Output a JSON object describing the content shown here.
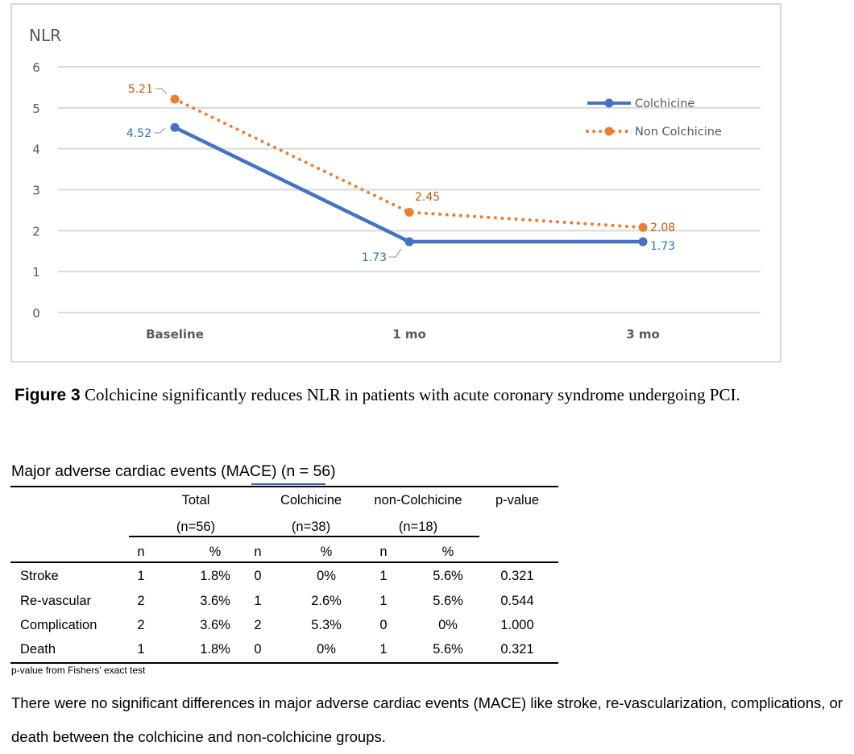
{
  "chart_data": {
    "type": "line",
    "title": "NLR",
    "xlabel": "",
    "ylabel": "NLR",
    "categories": [
      "Baseline",
      "1 mo",
      "3 mo"
    ],
    "ylim": [
      0,
      6
    ],
    "yticks": [
      0,
      1,
      2,
      3,
      4,
      5,
      6
    ],
    "grid": true,
    "legend_position": "top-right",
    "series": [
      {
        "name": "Colchicine",
        "values": [
          4.52,
          1.73,
          1.73
        ],
        "labels": [
          "4.52",
          "1.73",
          "1.73"
        ],
        "color": "#4472c4",
        "style": "solid"
      },
      {
        "name": "Non Colchicine",
        "values": [
          5.21,
          2.45,
          2.08
        ],
        "labels": [
          "5.21",
          "2.45",
          "2.08"
        ],
        "color": "#ed7d31",
        "style": "dotted"
      }
    ]
  },
  "colors": {
    "colchicine_label": "#2e75b6",
    "non_colchicine_label": "#c55a11",
    "axis_text": "#595959",
    "grid": "#d9d9d9"
  },
  "caption": {
    "prefix": "Figure 3",
    "text": " Colchicine significantly reduces NLR in patients with acute coronary syndrome undergoing PCI."
  },
  "table": {
    "title_before": "Major adverse cardiac events (",
    "title_mace": "MACE)",
    "title_after": "  (n = 56)",
    "groups": [
      {
        "name": "Total",
        "n": "(n=56)"
      },
      {
        "name": "Colchicine",
        "n": "(n=38)"
      },
      {
        "name": "non-Colchicine",
        "n": "(n=18)"
      }
    ],
    "pvalue_header": "p-value",
    "sub_headers": [
      "n",
      "%",
      "n",
      "%",
      "n",
      "%"
    ],
    "rows": [
      {
        "label": "Stroke",
        "cells": [
          "1",
          "1.8%",
          "0",
          "0%",
          "1",
          "5.6%",
          "0.321"
        ]
      },
      {
        "label": "Re-vascular",
        "cells": [
          "2",
          "3.6%",
          "1",
          "2.6%",
          "1",
          "5.6%",
          "0.544"
        ]
      },
      {
        "label": "Complication",
        "cells": [
          "2",
          "3.6%",
          "2",
          "5.3%",
          "0",
          "0%",
          "1.000"
        ]
      },
      {
        "label": "Death",
        "cells": [
          "1",
          "1.8%",
          "0",
          "0%",
          "1",
          "5.6%",
          "0.321"
        ]
      }
    ],
    "footnote": "p-value from Fishers' exact test"
  },
  "summary": "There were no significant differences in major adverse cardiac events (MACE) like stroke, re-vascularization, complications, or death between the colchicine and non-colchicine groups."
}
